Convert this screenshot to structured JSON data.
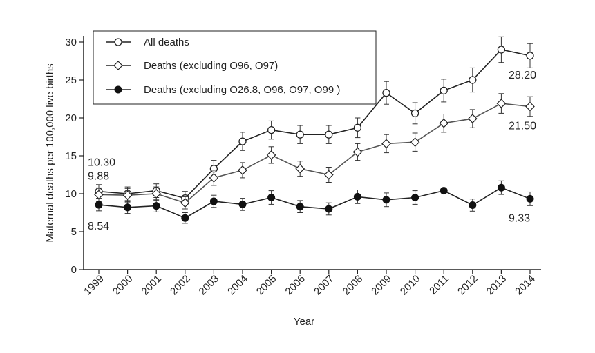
{
  "chart_data": {
    "type": "line",
    "title": "",
    "xlabel": "Year",
    "ylabel": "Maternal deaths per 100,000 live births",
    "ylim": [
      0,
      30
    ],
    "yticks": [
      0,
      5,
      10,
      15,
      20,
      25,
      30
    ],
    "categories": [
      "1999",
      "2000",
      "2001",
      "2002",
      "2003",
      "2004",
      "2005",
      "2006",
      "2007",
      "2008",
      "2009",
      "2010",
      "2011",
      "2012",
      "2013",
      "2014"
    ],
    "legend_position": "top-left",
    "series": [
      {
        "name": "All deaths",
        "marker": "open-circle",
        "values": [
          10.3,
          10.0,
          10.4,
          9.4,
          13.3,
          16.9,
          18.4,
          17.8,
          17.8,
          18.7,
          23.3,
          20.6,
          23.6,
          25.0,
          29.0,
          28.2
        ],
        "errors": [
          0.9,
          0.9,
          0.9,
          0.9,
          1.1,
          1.2,
          1.2,
          1.2,
          1.2,
          1.3,
          1.5,
          1.4,
          1.5,
          1.6,
          1.7,
          1.6
        ]
      },
      {
        "name": "Deaths (excluding O96, O97)",
        "marker": "open-diamond",
        "values": [
          9.88,
          9.8,
          10.0,
          8.8,
          12.1,
          13.1,
          15.1,
          13.3,
          12.5,
          15.5,
          16.6,
          16.8,
          19.3,
          19.9,
          21.9,
          21.5
        ],
        "errors": [
          0.9,
          0.9,
          0.9,
          0.8,
          1.0,
          1.0,
          1.1,
          1.0,
          1.0,
          1.1,
          1.2,
          1.2,
          1.2,
          1.2,
          1.3,
          1.3
        ]
      },
      {
        "name": "Deaths (excluding O26.8, O96, O97, O99 )",
        "marker": "filled-circle",
        "values": [
          8.54,
          8.2,
          8.4,
          6.8,
          9.0,
          8.6,
          9.5,
          8.3,
          8.0,
          9.6,
          9.2,
          9.5,
          10.4,
          8.5,
          10.8,
          9.33
        ],
        "errors": [
          0.8,
          0.8,
          0.8,
          0.7,
          0.8,
          0.8,
          0.9,
          0.8,
          0.8,
          0.9,
          0.9,
          0.9,
          0.0,
          0.8,
          0.9,
          0.9
        ]
      }
    ],
    "annotations": [
      {
        "text": "10.30",
        "series": 0,
        "index": 0,
        "anchor": "above-left"
      },
      {
        "text": "9.88",
        "series": 1,
        "index": 0,
        "anchor": "above-left"
      },
      {
        "text": "8.54",
        "series": 2,
        "index": 0,
        "anchor": "below-left"
      },
      {
        "text": "28.20",
        "series": 0,
        "index": 15,
        "anchor": "below"
      },
      {
        "text": "21.50",
        "series": 1,
        "index": 15,
        "anchor": "below"
      },
      {
        "text": "9.33",
        "series": 2,
        "index": 15,
        "anchor": "below"
      }
    ]
  }
}
